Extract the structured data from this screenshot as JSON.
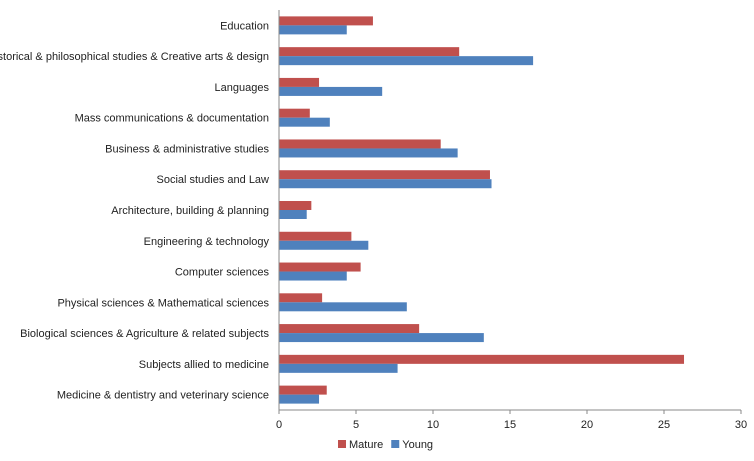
{
  "chart_data": {
    "type": "bar",
    "orientation": "horizontal",
    "categories": [
      "Education",
      "Historical & philosophical studies & Creative arts & design",
      "Languages",
      "Mass communications & documentation",
      "Business & administrative studies",
      "Social studies and Law",
      "Architecture, building & planning",
      "Engineering & technology",
      "Computer sciences",
      "Physical sciences & Mathematical sciences",
      "Biological sciences & Agriculture & related subjects",
      "Subjects allied to medicine",
      "Medicine & dentistry and veterinary science"
    ],
    "series": [
      {
        "name": "Mature",
        "color": "#c0504d",
        "values": [
          6.1,
          11.7,
          2.6,
          2.0,
          10.5,
          13.7,
          2.1,
          4.7,
          5.3,
          2.8,
          9.1,
          26.3,
          3.1
        ]
      },
      {
        "name": "Young",
        "color": "#4f81bd",
        "values": [
          4.4,
          16.5,
          6.7,
          3.3,
          11.6,
          13.8,
          1.8,
          5.8,
          4.4,
          8.3,
          13.3,
          7.7,
          2.6
        ]
      }
    ],
    "x_ticks": [
      "0",
      "5",
      "10",
      "15",
      "20",
      "25",
      "30"
    ],
    "xlim": [
      0,
      30
    ],
    "grid": false,
    "legend_position": "bottom"
  }
}
